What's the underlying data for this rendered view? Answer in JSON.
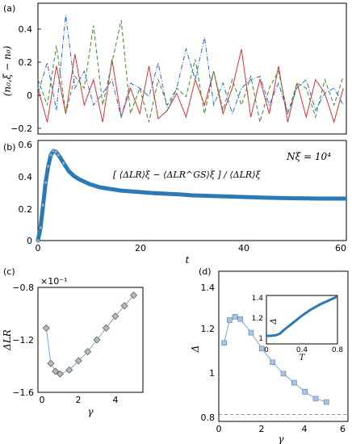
{
  "panels": {
    "a": {
      "panel_label": "(a)",
      "ylabel": "(n₀,ξ − n₀)",
      "yticks": [
        "0.4",
        "0.2",
        "0",
        "−0.2"
      ]
    },
    "b": {
      "panel_label": "(b)",
      "annotation_n": "Nξ = 10⁴",
      "annotation_formula": "[ ⟨ΔLR⟩ξ − ⟨ΔLR^GS⟩ξ ] / ⟨ΔLR⟩ξ",
      "yticks": [
        "0.6",
        "0.4",
        "0.2",
        "0"
      ],
      "xticks": [
        "0",
        "20",
        "40",
        "60"
      ],
      "xlabel": "t"
    },
    "c": {
      "panel_label": "(c)",
      "multiplier": "×10⁻¹",
      "ylabel": "ΔLR",
      "xlabel": "γ",
      "yticks": [
        "−0.8",
        "−1.2",
        "−1.6"
      ],
      "xticks": [
        "0",
        "2",
        "4"
      ]
    },
    "d": {
      "panel_label": "(d)",
      "ylabel": "Δ",
      "xlabel": "γ",
      "yticks": [
        "1.4",
        "1.2",
        "1",
        "0.8"
      ],
      "xticks": [
        "0",
        "2",
        "4",
        "6"
      ],
      "inset": {
        "ylabel": "Δ",
        "xlabel": "T",
        "yticks": [
          "1.4",
          "1.2",
          "1"
        ],
        "xticks": [
          "0",
          "0.4",
          "0.8"
        ]
      }
    }
  },
  "chart_data": [
    {
      "id": "a",
      "type": "line",
      "xlim": [
        0,
        200
      ],
      "ylim": [
        -0.22,
        0.55
      ],
      "series": [
        {
          "color": "#e03030",
          "style": "solid",
          "x": [
            0,
            6,
            12,
            18,
            24,
            30,
            36,
            42,
            48,
            54,
            60,
            66,
            72,
            78,
            84,
            90,
            96,
            102,
            108,
            114,
            120,
            126,
            132,
            138,
            144,
            150,
            156,
            162,
            168,
            174,
            180,
            186,
            192,
            198
          ],
          "y": [
            0.05,
            -0.15,
            0.18,
            -0.1,
            0.25,
            -0.05,
            0.1,
            -0.15,
            0.22,
            -0.12,
            0.05,
            -0.1,
            0.18,
            -0.13,
            -0.08,
            0.02,
            -0.12,
            0.1,
            -0.05,
            0.15,
            -0.1,
            0.05,
            0.28,
            -0.12,
            0.1,
            -0.1,
            0.18,
            -0.15,
            0.08,
            -0.12,
            0.1,
            0.02,
            -0.15,
            0.05
          ]
        },
        {
          "color": "#3a8a2a",
          "style": "dashed",
          "x": [
            0,
            6,
            12,
            18,
            24,
            30,
            36,
            42,
            48,
            54,
            60,
            66,
            72,
            78,
            84,
            90,
            96,
            102,
            108,
            114,
            120,
            126,
            132,
            138,
            144,
            150,
            156,
            162,
            168,
            174,
            180,
            186,
            192,
            198
          ],
          "y": [
            0.1,
            -0.05,
            0.3,
            -0.1,
            0.12,
            0.05,
            0.42,
            -0.05,
            0.2,
            0.45,
            -0.1,
            0.05,
            -0.15,
            0.1,
            -0.05,
            0.05,
            0.0,
            0.22,
            -0.1,
            0.15,
            -0.08,
            0.1,
            -0.05,
            0.12,
            -0.15,
            0.05,
            0.15,
            -0.1,
            0.08,
            0.05,
            -0.12,
            0.1,
            -0.05,
            0.12
          ]
        },
        {
          "color": "#2a6ad0",
          "style": "dashdot",
          "x": [
            0,
            6,
            12,
            18,
            24,
            30,
            36,
            42,
            48,
            54,
            60,
            66,
            72,
            78,
            84,
            90,
            96,
            102,
            108,
            114,
            120,
            126,
            132,
            138,
            144,
            150,
            156,
            162,
            168,
            174,
            180,
            186,
            192,
            198
          ],
          "y": [
            0.02,
            0.2,
            -0.08,
            0.48,
            0.05,
            0.15,
            -0.05,
            0.02,
            0.1,
            -0.12,
            0.08,
            0.05,
            0.0,
            0.2,
            -0.08,
            0.05,
            0.28,
            0.1,
            0.35,
            -0.05,
            0.08,
            -0.1,
            0.05,
            0.1,
            0.12,
            -0.05,
            0.08,
            -0.1,
            0.05,
            0.1,
            -0.08,
            0.02,
            0.05,
            -0.05
          ]
        }
      ]
    },
    {
      "id": "b",
      "type": "line",
      "xlim": [
        0,
        60
      ],
      "ylim": [
        0,
        0.62
      ],
      "x": [
        0,
        0.5,
        1,
        1.5,
        2,
        2.5,
        3,
        3.5,
        4,
        5,
        6,
        7,
        8,
        10,
        12,
        14,
        16,
        18,
        20,
        22,
        25,
        28,
        30,
        35,
        40,
        45,
        50,
        55,
        60
      ],
      "y": [
        0,
        0.08,
        0.22,
        0.36,
        0.46,
        0.53,
        0.555,
        0.55,
        0.53,
        0.48,
        0.43,
        0.4,
        0.38,
        0.35,
        0.33,
        0.32,
        0.31,
        0.305,
        0.3,
        0.295,
        0.29,
        0.285,
        0.28,
        0.275,
        0.27,
        0.265,
        0.262,
        0.26,
        0.26
      ]
    },
    {
      "id": "c",
      "type": "line",
      "xlim": [
        -0.2,
        5.5
      ],
      "ylim": [
        -1.6,
        -0.8
      ],
      "x": [
        0.25,
        0.5,
        0.75,
        1.0,
        1.5,
        2.0,
        2.5,
        3.0,
        3.5,
        4.0,
        4.5,
        5.0
      ],
      "y": [
        -1.11,
        -1.38,
        -1.44,
        -1.46,
        -1.43,
        -1.36,
        -1.29,
        -1.2,
        -1.11,
        -1.02,
        -0.94,
        -0.86
      ]
    },
    {
      "id": "d",
      "type": "line",
      "xlim": [
        0,
        6
      ],
      "ylim": [
        0.82,
        1.48
      ],
      "x": [
        0.25,
        0.5,
        0.75,
        1.0,
        1.5,
        2.0,
        2.5,
        3.0,
        3.5,
        4.0,
        4.5,
        5.0
      ],
      "y": [
        1.165,
        1.265,
        1.28,
        1.27,
        1.21,
        1.14,
        1.08,
        1.03,
        0.99,
        0.95,
        0.92,
        0.905
      ],
      "reference_line": 0.85
    },
    {
      "id": "d-inset",
      "type": "line",
      "xlim": [
        0,
        0.8
      ],
      "ylim": [
        0.92,
        1.4
      ],
      "x": [
        0,
        0.05,
        0.1,
        0.15,
        0.2,
        0.3,
        0.4,
        0.5,
        0.6,
        0.7,
        0.8
      ],
      "y": [
        1.0,
        1.0,
        1.005,
        1.02,
        1.06,
        1.13,
        1.2,
        1.26,
        1.31,
        1.35,
        1.39
      ]
    }
  ]
}
